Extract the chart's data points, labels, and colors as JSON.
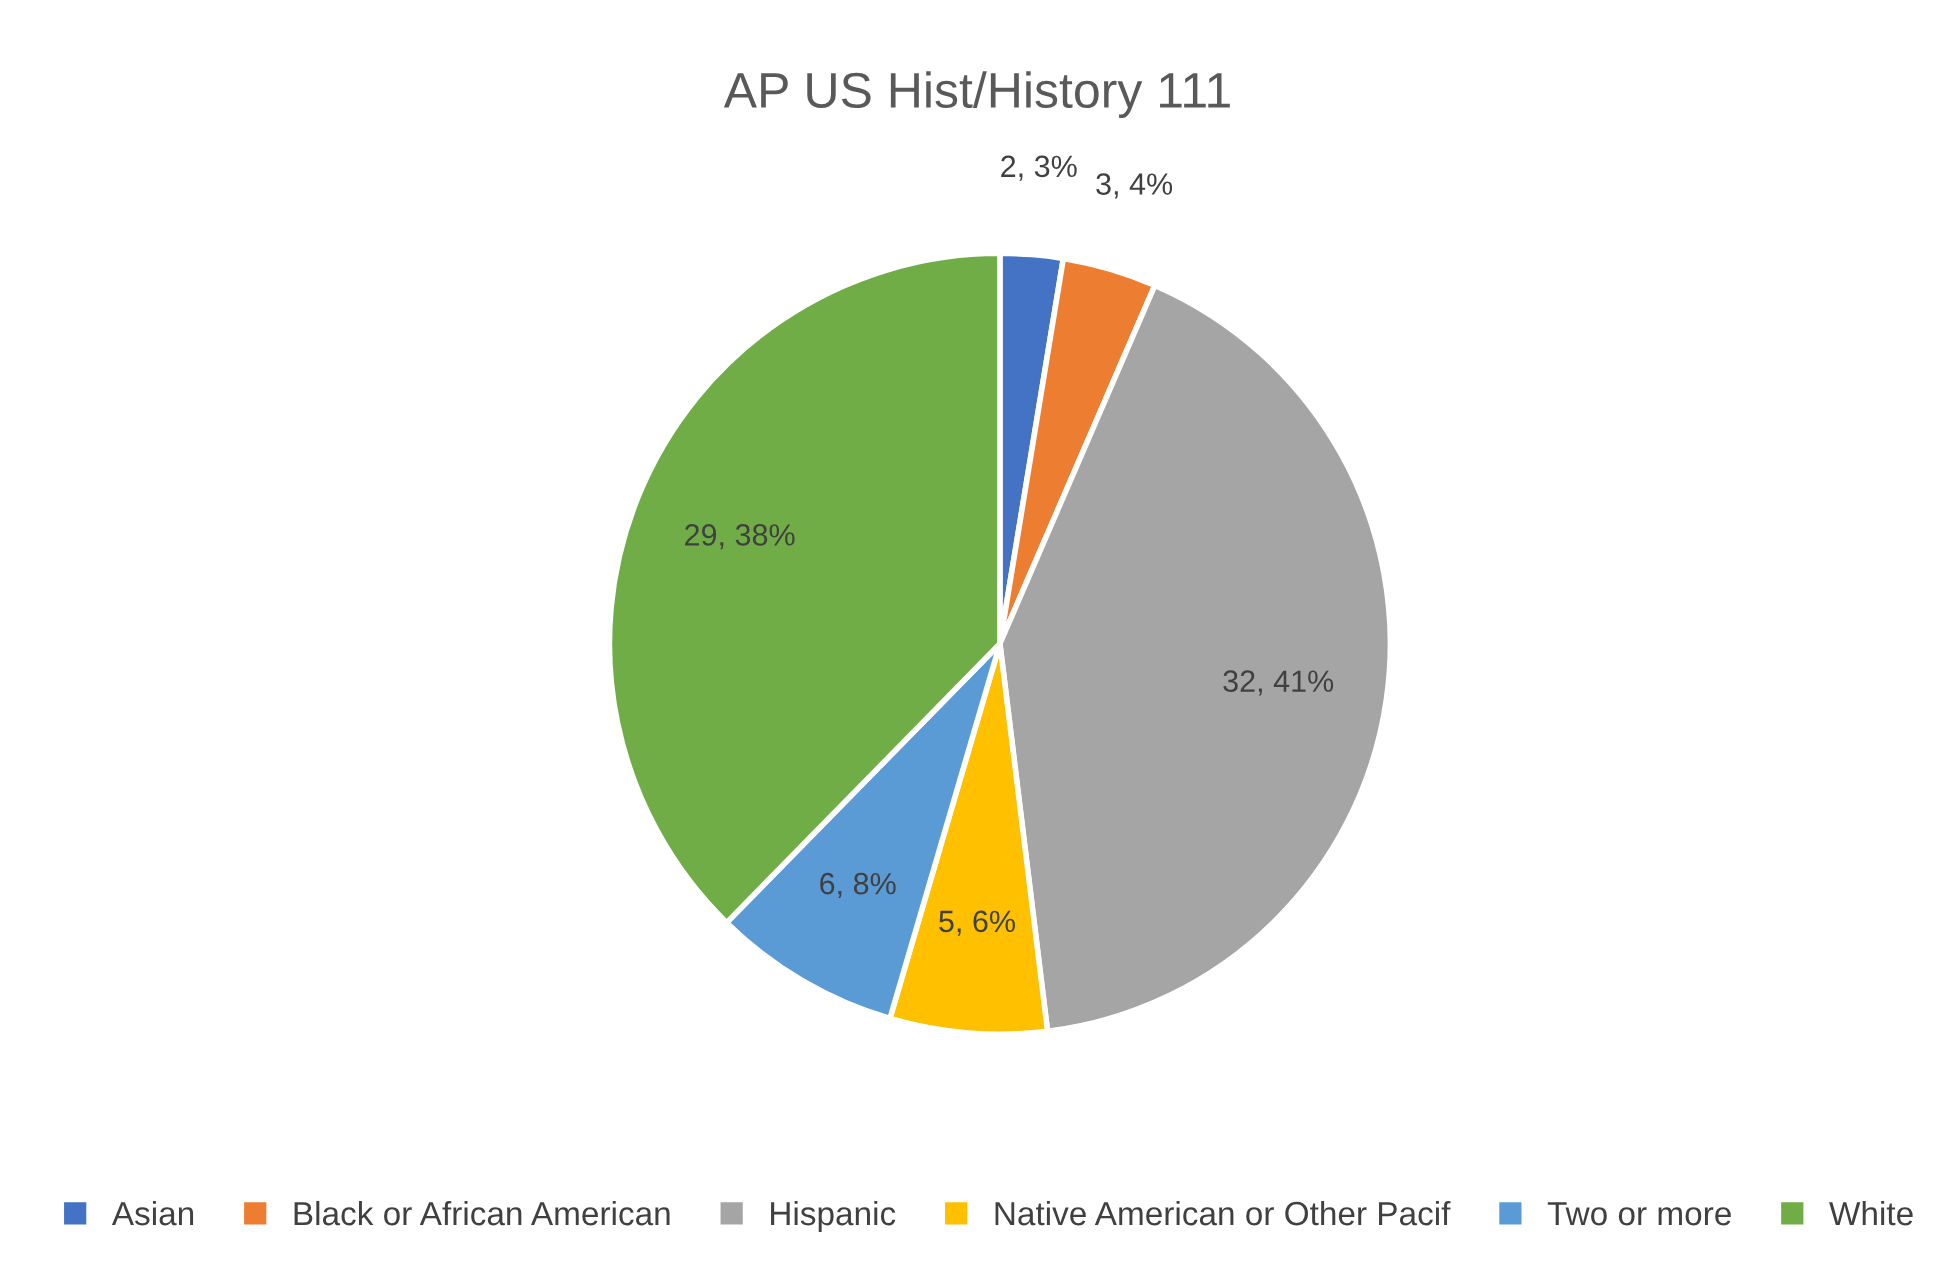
{
  "chart_data": {
    "type": "pie",
    "title": "AP US Hist/History 111",
    "categories": [
      "Asian",
      "Black or African American",
      "Hispanic",
      "Native American or Other Pacif",
      "Two or more",
      "White"
    ],
    "values": [
      2,
      3,
      32,
      5,
      6,
      29
    ],
    "colors": [
      "#4472c4",
      "#ed7d31",
      "#a5a5a5",
      "#ffc000",
      "#5b9bd5",
      "#70ad47"
    ],
    "value_labels": [
      "2, 3%",
      "3, 4%",
      "32, 41%",
      "5, 6%",
      "6, 8%",
      "29, 38%"
    ],
    "legend": "bottom"
  }
}
